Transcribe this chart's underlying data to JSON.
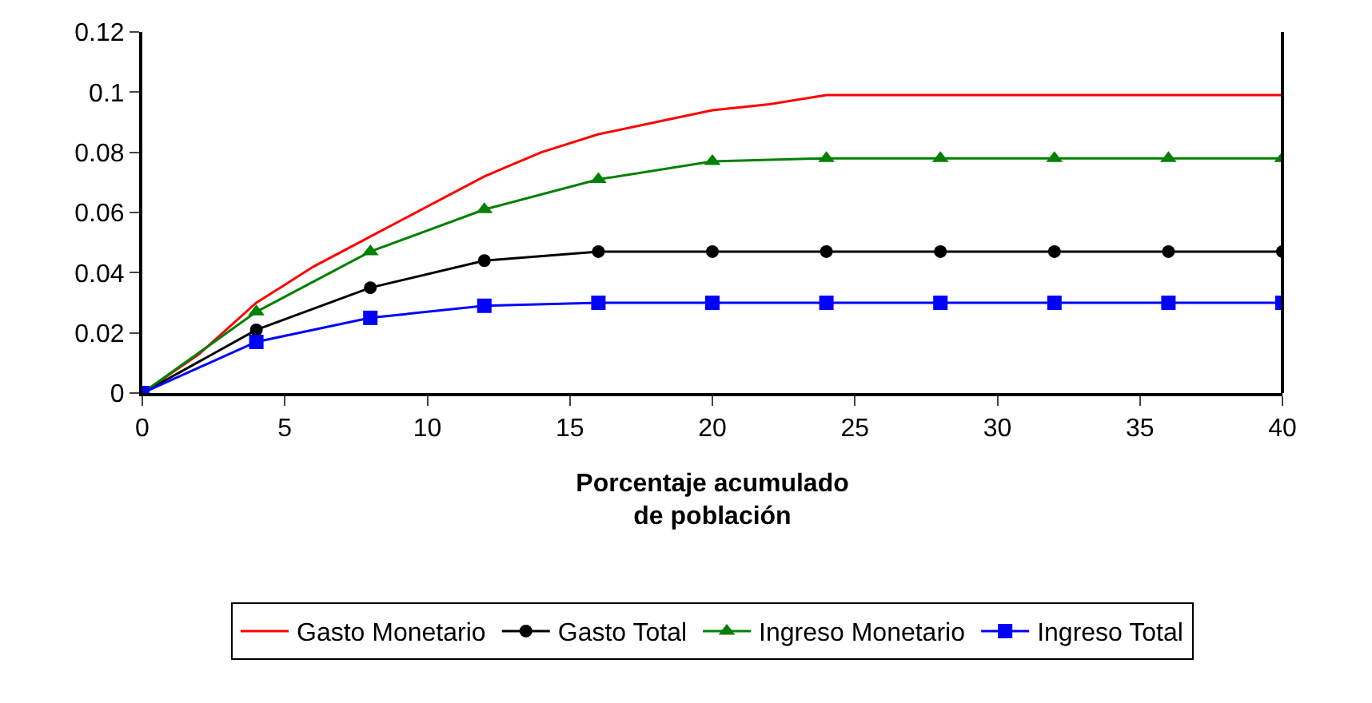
{
  "chart_data": {
    "type": "line",
    "xlabel": "Porcentaje acumulado\nde población",
    "xlim": [
      0,
      40
    ],
    "xticks": [
      0,
      5,
      10,
      15,
      20,
      25,
      30,
      35,
      40
    ],
    "ylim": [
      0,
      0.12
    ],
    "yticks": [
      0,
      0.02,
      0.04,
      0.06,
      0.08,
      0.1,
      0.12
    ],
    "grid": false,
    "legend": "bottom",
    "series": [
      {
        "name": "Gasto Monetario",
        "color": "#ff0000",
        "marker": "none",
        "x": [
          0,
          2,
          4,
          5,
          6,
          8,
          10,
          12,
          13,
          14,
          16,
          18,
          20,
          22,
          24,
          28,
          32,
          36,
          40
        ],
        "values": [
          0,
          0.013,
          0.03,
          0.036,
          0.042,
          0.052,
          0.062,
          0.072,
          0.076,
          0.08,
          0.086,
          0.09,
          0.094,
          0.096,
          0.099,
          0.099,
          0.099,
          0.099,
          0.099
        ]
      },
      {
        "name": "Gasto Total",
        "color": "#000000",
        "marker": "circle",
        "x": [
          0,
          4,
          8,
          12,
          16,
          20,
          24,
          28,
          32,
          36,
          40
        ],
        "values": [
          0,
          0.021,
          0.035,
          0.044,
          0.047,
          0.047,
          0.047,
          0.047,
          0.047,
          0.047,
          0.047
        ]
      },
      {
        "name": "Ingreso Monetario",
        "color": "#008000",
        "marker": "triangle",
        "x": [
          0,
          4,
          8,
          12,
          16,
          20,
          24,
          28,
          32,
          36,
          40
        ],
        "values": [
          0,
          0.027,
          0.047,
          0.061,
          0.071,
          0.077,
          0.078,
          0.078,
          0.078,
          0.078,
          0.078
        ]
      },
      {
        "name": "Ingreso Total",
        "color": "#0000ff",
        "marker": "square",
        "x": [
          0,
          4,
          8,
          12,
          16,
          20,
          24,
          28,
          32,
          36,
          40
        ],
        "values": [
          0,
          0.017,
          0.025,
          0.029,
          0.03,
          0.03,
          0.03,
          0.03,
          0.03,
          0.03,
          0.03
        ]
      }
    ]
  }
}
